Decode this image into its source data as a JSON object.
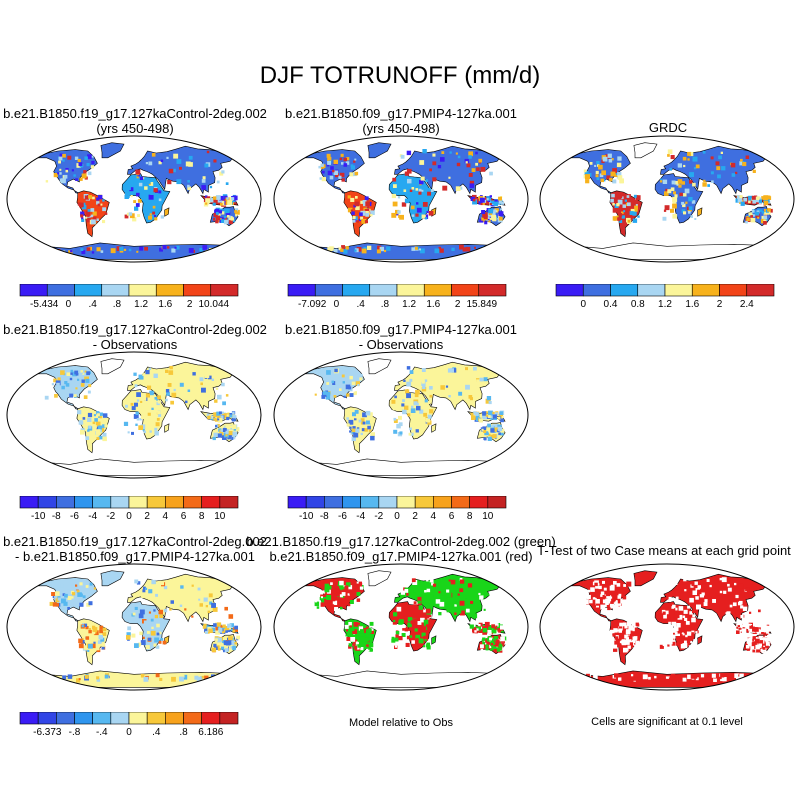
{
  "figure_title": "DJF TOTRUNOFF (mm/d)",
  "panels": [
    {
      "id": "p1",
      "title_lines": [
        "b.e21.B1850.f19_g17.127kaControl-2deg.002",
        "(yrs 450-498)"
      ],
      "type": "field"
    },
    {
      "id": "p2",
      "title_lines": [
        "b.e21.B1850.f09_g17.PMIP4-127ka.001",
        "(yrs 450-498)"
      ],
      "type": "field"
    },
    {
      "id": "p3",
      "title_lines": [
        "GRDC"
      ],
      "type": "obs"
    },
    {
      "id": "p4",
      "title_lines": [
        "b.e21.B1850.f19_g17.127kaControl-2deg.002",
        "- Observations"
      ],
      "type": "diff"
    },
    {
      "id": "p5",
      "title_lines": [
        "b.e21.B1850.f09_g17.PMIP4-127ka.001",
        "- Observations"
      ],
      "type": "diff"
    },
    {
      "id": "p6",
      "title_lines": [
        "b.e21.B1850.f19_g17.127kaControl-2deg.002",
        "- b.e21.B1850.f09_g17.PMIP4-127ka.001"
      ],
      "type": "casediff"
    },
    {
      "id": "p7",
      "title_lines": [
        "b.e21.B1850.f19_g17.127kaControl-2deg.002 (green)",
        "b.e21.B1850.f09_g17.PMIP4-127ka.001 (red)"
      ],
      "type": "rel"
    },
    {
      "id": "p8",
      "title_lines": [
        "T-Test of two Case means at each grid point"
      ],
      "type": "ttest"
    }
  ],
  "colorbars": [
    {
      "id": "cb1",
      "labels": [
        "-5.434",
        "0",
        ".4",
        ".8",
        "1.2",
        "1.6",
        "2",
        "10.044"
      ],
      "colors": [
        "#3a1cf5",
        "#3f6fe0",
        "#27a8f0",
        "#a9d6f2",
        "#fbf59a",
        "#f7b21c",
        "#f24418",
        "#d32a2a"
      ]
    },
    {
      "id": "cb2",
      "labels": [
        "-7.092",
        "0",
        ".4",
        ".8",
        "1.2",
        "1.6",
        "2",
        "15.849"
      ],
      "colors": [
        "#3a1cf5",
        "#3f6fe0",
        "#27a8f0",
        "#a9d6f2",
        "#fbf59a",
        "#f7b21c",
        "#f24418",
        "#d32a2a"
      ]
    },
    {
      "id": "cb3",
      "labels": [
        "0",
        "0.4",
        "0.8",
        "1.2",
        "1.6",
        "2",
        "2.4"
      ],
      "colors": [
        "#3a1cf5",
        "#3f6fe0",
        "#27a8f0",
        "#a9d6f2",
        "#fbf59a",
        "#f7b21c",
        "#f24418",
        "#d32a2a"
      ]
    },
    {
      "id": "cb4",
      "labels": [
        "-10",
        "-8",
        "-6",
        "-4",
        "-2",
        "0",
        "2",
        "4",
        "6",
        "8",
        "10"
      ],
      "colors": [
        "#3a1cf5",
        "#3145e6",
        "#3f6fe0",
        "#2f95ee",
        "#57b8f0",
        "#a9d6f2",
        "#fbf59a",
        "#f7c83a",
        "#f7a21c",
        "#f36a18",
        "#e51f1f",
        "#c42323"
      ]
    },
    {
      "id": "cb5",
      "labels": [
        "-10",
        "-8",
        "-6",
        "-4",
        "-2",
        "0",
        "2",
        "4",
        "6",
        "8",
        "10"
      ],
      "colors": [
        "#3a1cf5",
        "#3145e6",
        "#3f6fe0",
        "#2f95ee",
        "#57b8f0",
        "#a9d6f2",
        "#fbf59a",
        "#f7c83a",
        "#f7a21c",
        "#f36a18",
        "#e51f1f",
        "#c42323"
      ]
    },
    {
      "id": "cb6",
      "labels": [
        "-6.373",
        "-.8",
        "-.4",
        "0",
        ".4",
        ".8",
        "6.186"
      ],
      "colors": [
        "#3a1cf5",
        "#3145e6",
        "#3f6fe0",
        "#2f95ee",
        "#57b8f0",
        "#a9d6f2",
        "#fbf59a",
        "#f7c83a",
        "#f7a21c",
        "#f36a18",
        "#e51f1f",
        "#c42323"
      ]
    }
  ],
  "notes": {
    "model_relative": "Model relative to Obs",
    "significance": "Cells are significant at 0.1 level"
  }
}
